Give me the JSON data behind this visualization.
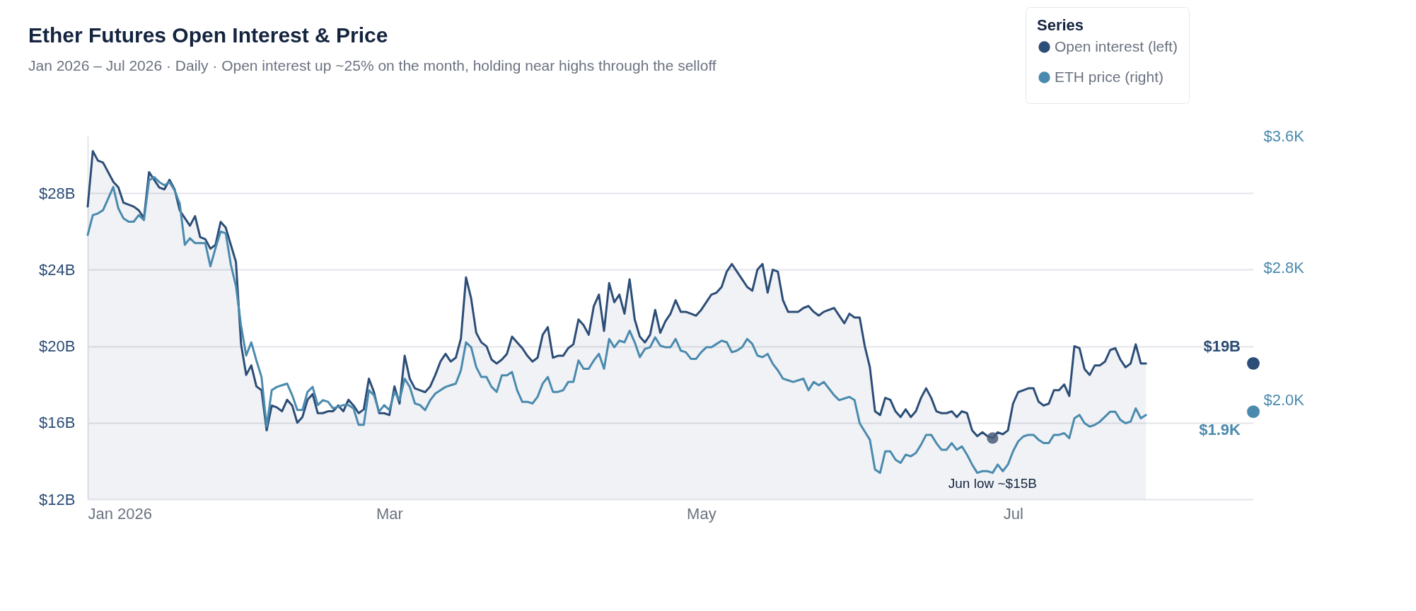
{
  "chart_data": {
    "type": "line",
    "title": "Ether Futures Open Interest & Price",
    "subtitle": "Jan 2026 – Jul 2026 · Daily · Open interest up ~25% on the month, holding near highs through the selloff",
    "legend_title": "Series",
    "legend": "top right",
    "grid": "y",
    "xlim": [
      "2026-01-01",
      "2026-08-17"
    ],
    "xticks": [
      {
        "value": "2026-01-01",
        "label": "Jan 2026"
      },
      {
        "value": "2026-03-01",
        "label": "Mar"
      },
      {
        "value": "2026-05-01",
        "label": "May"
      },
      {
        "value": "2026-07-01",
        "label": "Jul"
      }
    ],
    "ylim": [
      12,
      31
    ],
    "yticks": [
      {
        "value": 12,
        "label": "$12B"
      },
      {
        "value": 16,
        "label": "$16B"
      },
      {
        "value": 20,
        "label": "$20B"
      },
      {
        "value": 24,
        "label": "$24B"
      },
      {
        "value": 28,
        "label": "$28B"
      }
    ],
    "y2lim": [
      1.4,
      3.6
    ],
    "y2ticks": [
      {
        "value": 2.0,
        "label": "$2.0K"
      },
      {
        "value": 2.8,
        "label": "$2.8K"
      },
      {
        "value": 3.6,
        "label": "$3.6K"
      }
    ],
    "annotations": [
      {
        "text": "Jun low ~$15B",
        "x": "2026-06-27",
        "y": 15.2
      }
    ],
    "x": [
      "2026-01-01",
      "2026-01-02",
      "2026-01-03",
      "2026-01-04",
      "2026-01-05",
      "2026-01-06",
      "2026-01-07",
      "2026-01-08",
      "2026-01-09",
      "2026-01-10",
      "2026-01-11",
      "2026-01-12",
      "2026-01-13",
      "2026-01-14",
      "2026-01-15",
      "2026-01-16",
      "2026-01-17",
      "2026-01-18",
      "2026-01-19",
      "2026-01-20",
      "2026-01-21",
      "2026-01-22",
      "2026-01-23",
      "2026-01-24",
      "2026-01-25",
      "2026-01-26",
      "2026-01-27",
      "2026-01-28",
      "2026-01-29",
      "2026-01-30",
      "2026-01-31",
      "2026-02-01",
      "2026-02-02",
      "2026-02-03",
      "2026-02-04",
      "2026-02-05",
      "2026-02-06",
      "2026-02-07",
      "2026-02-08",
      "2026-02-09",
      "2026-02-10",
      "2026-02-11",
      "2026-02-12",
      "2026-02-13",
      "2026-02-14",
      "2026-02-15",
      "2026-02-16",
      "2026-02-17",
      "2026-02-18",
      "2026-02-19",
      "2026-02-20",
      "2026-02-21",
      "2026-02-22",
      "2026-02-23",
      "2026-02-24",
      "2026-02-25",
      "2026-02-26",
      "2026-02-27",
      "2026-02-28",
      "2026-03-01",
      "2026-03-02",
      "2026-03-03",
      "2026-03-04",
      "2026-03-05",
      "2026-03-06",
      "2026-03-07",
      "2026-03-08",
      "2026-03-09",
      "2026-03-10",
      "2026-03-11",
      "2026-03-12",
      "2026-03-13",
      "2026-03-14",
      "2026-03-15",
      "2026-03-16",
      "2026-03-17",
      "2026-03-18",
      "2026-03-19",
      "2026-03-20",
      "2026-03-21",
      "2026-03-22",
      "2026-03-23",
      "2026-03-24",
      "2026-03-25",
      "2026-03-26",
      "2026-03-27",
      "2026-03-28",
      "2026-03-29",
      "2026-03-30",
      "2026-03-31",
      "2026-04-01",
      "2026-04-02",
      "2026-04-03",
      "2026-04-04",
      "2026-04-05",
      "2026-04-06",
      "2026-04-07",
      "2026-04-08",
      "2026-04-09",
      "2026-04-10",
      "2026-04-11",
      "2026-04-12",
      "2026-04-13",
      "2026-04-14",
      "2026-04-15",
      "2026-04-16",
      "2026-04-17",
      "2026-04-18",
      "2026-04-19",
      "2026-04-20",
      "2026-04-21",
      "2026-04-22",
      "2026-04-23",
      "2026-04-24",
      "2026-04-25",
      "2026-04-26",
      "2026-04-27",
      "2026-04-28",
      "2026-04-29",
      "2026-04-30",
      "2026-05-01",
      "2026-05-02",
      "2026-05-03",
      "2026-05-04",
      "2026-05-05",
      "2026-05-06",
      "2026-05-07",
      "2026-05-08",
      "2026-05-09",
      "2026-05-10",
      "2026-05-11",
      "2026-05-12",
      "2026-05-13",
      "2026-05-14",
      "2026-05-15",
      "2026-05-16",
      "2026-05-17",
      "2026-05-18",
      "2026-05-19",
      "2026-05-20",
      "2026-05-21",
      "2026-05-22",
      "2026-05-23",
      "2026-05-24",
      "2026-05-25",
      "2026-05-26",
      "2026-05-27",
      "2026-05-28",
      "2026-05-29",
      "2026-05-30",
      "2026-05-31",
      "2026-06-01",
      "2026-06-02",
      "2026-06-03",
      "2026-06-04",
      "2026-06-05",
      "2026-06-06",
      "2026-06-07",
      "2026-06-08",
      "2026-06-09",
      "2026-06-10",
      "2026-06-11",
      "2026-06-12",
      "2026-06-13",
      "2026-06-14",
      "2026-06-15",
      "2026-06-16",
      "2026-06-17",
      "2026-06-18",
      "2026-06-19",
      "2026-06-20",
      "2026-06-21",
      "2026-06-22",
      "2026-06-23",
      "2026-06-24",
      "2026-06-25",
      "2026-06-26",
      "2026-06-27",
      "2026-06-28",
      "2026-06-29",
      "2026-06-30",
      "2026-07-01",
      "2026-07-02",
      "2026-07-03",
      "2026-07-04",
      "2026-07-05",
      "2026-07-06",
      "2026-07-07",
      "2026-07-08",
      "2026-07-09",
      "2026-07-10",
      "2026-07-11",
      "2026-07-12",
      "2026-07-13",
      "2026-07-14",
      "2026-07-15",
      "2026-07-16",
      "2026-07-17",
      "2026-07-18",
      "2026-07-19",
      "2026-07-20",
      "2026-07-21",
      "2026-07-22",
      "2026-07-23",
      "2026-07-24",
      "2026-07-25",
      "2026-07-26",
      "2026-07-27"
    ],
    "series": [
      {
        "name": "Open interest (left)",
        "type": "area",
        "color": "#2c4d77",
        "values": [
          27.3,
          30.2,
          29.7,
          29.6,
          29.1,
          28.6,
          28.3,
          27.5,
          27.4,
          27.3,
          27.1,
          26.7,
          29.1,
          28.7,
          28.3,
          28.2,
          28.7,
          28.2,
          27.1,
          26.7,
          26.3,
          26.8,
          25.7,
          25.6,
          25.1,
          25.3,
          26.5,
          26.2,
          25.3,
          24.4,
          20.1,
          18.5,
          19.0,
          17.9,
          17.7,
          15.6,
          16.9,
          16.8,
          16.6,
          17.2,
          16.9,
          16.0,
          16.3,
          17.2,
          17.5,
          16.5,
          16.5,
          16.6,
          16.6,
          16.9,
          16.6,
          17.2,
          16.9,
          16.5,
          16.7,
          18.3,
          17.6,
          16.5,
          16.5,
          16.4,
          17.9,
          17.0,
          19.5,
          18.3,
          17.8,
          17.7,
          17.6,
          17.9,
          18.5,
          19.2,
          19.6,
          19.2,
          19.4,
          20.4,
          23.6,
          22.5,
          20.7,
          20.2,
          20.0,
          19.3,
          19.1,
          19.3,
          19.6,
          20.5,
          20.2,
          19.9,
          19.5,
          19.2,
          19.4,
          20.6,
          21.0,
          19.4,
          19.5,
          19.5,
          19.9,
          20.1,
          21.4,
          21.1,
          20.6,
          22.1,
          22.7,
          20.8,
          23.3,
          22.3,
          22.7,
          21.7,
          23.5,
          21.4,
          20.5,
          20.2,
          20.6,
          21.9,
          20.7,
          21.3,
          21.7,
          22.4,
          21.8,
          21.8,
          21.7,
          21.6,
          21.9,
          22.3,
          22.7,
          22.8,
          23.1,
          23.9,
          24.3,
          23.9,
          23.5,
          23.1,
          22.9,
          24.0,
          24.3,
          22.8,
          24.0,
          23.9,
          22.4,
          21.8,
          21.8,
          21.8,
          22.0,
          22.1,
          21.8,
          21.6,
          21.8,
          21.9,
          22.0,
          21.6,
          21.2,
          21.7,
          21.5,
          21.5,
          20.0,
          18.9,
          16.6,
          16.4,
          17.3,
          17.2,
          16.6,
          16.3,
          16.7,
          16.3,
          16.6,
          17.3,
          17.8,
          17.3,
          16.6,
          16.5,
          16.5,
          16.6,
          16.3,
          16.6,
          16.5,
          15.6,
          15.3,
          15.5,
          15.3,
          15.2,
          15.5,
          15.4,
          15.6,
          17.0,
          17.6,
          17.7,
          17.8,
          17.8,
          17.1,
          16.9,
          17.0,
          17.7,
          17.7,
          18.0,
          17.4,
          20.0,
          19.9,
          18.8,
          18.5,
          19.0,
          19.0,
          19.2,
          19.8,
          19.9,
          19.3,
          18.9,
          19.1,
          20.1,
          19.1,
          19.1
        ]
      },
      {
        "name": "ETH price (right)",
        "axis": "y2",
        "color": "#4a8aae",
        "values": [
          3.0,
          3.12,
          3.13,
          3.15,
          3.22,
          3.29,
          3.16,
          3.1,
          3.08,
          3.08,
          3.12,
          3.09,
          3.33,
          3.35,
          3.32,
          3.3,
          3.32,
          3.27,
          3.19,
          2.94,
          2.98,
          2.95,
          2.95,
          2.95,
          2.81,
          2.92,
          3.02,
          3.01,
          2.82,
          2.69,
          2.45,
          2.27,
          2.35,
          2.24,
          2.14,
          1.84,
          2.06,
          2.08,
          2.09,
          2.1,
          2.03,
          1.94,
          1.94,
          2.05,
          2.08,
          1.97,
          2.0,
          1.99,
          1.95,
          1.96,
          1.97,
          1.97,
          1.95,
          1.85,
          1.85,
          2.06,
          2.03,
          1.93,
          1.97,
          1.94,
          2.05,
          2.0,
          2.13,
          2.08,
          1.98,
          1.97,
          1.94,
          2.0,
          2.04,
          2.06,
          2.08,
          2.09,
          2.1,
          2.18,
          2.35,
          2.32,
          2.2,
          2.14,
          2.14,
          2.08,
          2.05,
          2.15,
          2.15,
          2.17,
          2.06,
          1.99,
          1.99,
          1.98,
          2.02,
          2.1,
          2.14,
          2.05,
          2.05,
          2.06,
          2.11,
          2.11,
          2.24,
          2.19,
          2.19,
          2.24,
          2.28,
          2.19,
          2.37,
          2.32,
          2.36,
          2.35,
          2.42,
          2.35,
          2.26,
          2.31,
          2.32,
          2.38,
          2.33,
          2.32,
          2.32,
          2.37,
          2.3,
          2.29,
          2.25,
          2.25,
          2.29,
          2.32,
          2.32,
          2.34,
          2.36,
          2.35,
          2.29,
          2.3,
          2.32,
          2.37,
          2.34,
          2.27,
          2.26,
          2.28,
          2.22,
          2.18,
          2.13,
          2.12,
          2.11,
          2.12,
          2.13,
          2.06,
          2.11,
          2.09,
          2.11,
          2.07,
          2.03,
          2.0,
          2.01,
          2.02,
          2.0,
          1.86,
          1.81,
          1.76,
          1.58,
          1.56,
          1.69,
          1.69,
          1.64,
          1.62,
          1.67,
          1.66,
          1.68,
          1.73,
          1.79,
          1.79,
          1.74,
          1.7,
          1.7,
          1.74,
          1.7,
          1.72,
          1.67,
          1.61,
          1.56,
          1.57,
          1.57,
          1.56,
          1.61,
          1.57,
          1.61,
          1.69,
          1.75,
          1.78,
          1.79,
          1.79,
          1.76,
          1.74,
          1.74,
          1.79,
          1.79,
          1.8,
          1.77,
          1.89,
          1.91,
          1.86,
          1.84,
          1.85,
          1.87,
          1.9,
          1.93,
          1.93,
          1.88,
          1.86,
          1.87,
          1.95,
          1.89,
          1.91
        ]
      },
      {
        "type": "scatter",
        "color": "#2c4d77",
        "x": [
          "2026-08-17"
        ],
        "values": [
          19.1
        ],
        "value_labels": [
          "$19B"
        ]
      },
      {
        "type": "scatter",
        "axis": "y2",
        "color": "#4a8aae",
        "x": [
          "2026-08-17"
        ],
        "values": [
          1.93
        ],
        "value_labels": [
          "$1.9K"
        ]
      }
    ]
  }
}
